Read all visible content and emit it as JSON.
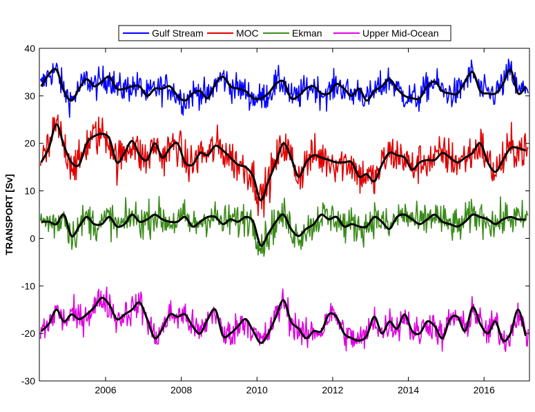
{
  "chart_data": {
    "type": "line",
    "title": "",
    "xlabel": "",
    "ylabel": "TRANSPORT [Sv]",
    "xlim": [
      2004.25,
      2017.2
    ],
    "ylim": [
      -30,
      40
    ],
    "x_ticks": [
      2006,
      2008,
      2010,
      2012,
      2014,
      2016
    ],
    "y_ticks": [
      -30,
      -20,
      -10,
      0,
      10,
      20,
      30,
      40
    ],
    "legend_position": "top-center",
    "grid": false,
    "smoothed_line_color": "#000000",
    "series": [
      {
        "name": "Gulf Stream",
        "color": "#0000ff",
        "x": [
          2004.3,
          2004.5,
          2004.7,
          2004.9,
          2005.1,
          2005.3,
          2005.5,
          2005.7,
          2005.9,
          2006.1,
          2006.3,
          2006.5,
          2006.7,
          2006.9,
          2007.1,
          2007.3,
          2007.5,
          2007.7,
          2007.9,
          2008.1,
          2008.3,
          2008.5,
          2008.7,
          2008.9,
          2009.1,
          2009.3,
          2009.5,
          2009.7,
          2009.9,
          2010.1,
          2010.3,
          2010.5,
          2010.7,
          2010.9,
          2011.1,
          2011.3,
          2011.5,
          2011.7,
          2011.9,
          2012.1,
          2012.3,
          2012.5,
          2012.7,
          2012.9,
          2013.1,
          2013.3,
          2013.5,
          2013.7,
          2013.9,
          2014.1,
          2014.3,
          2014.5,
          2014.7,
          2014.9,
          2015.1,
          2015.3,
          2015.5,
          2015.7,
          2015.9,
          2016.1,
          2016.3,
          2016.5,
          2016.7,
          2016.9,
          2017.1
        ],
        "values": [
          32.0,
          34.5,
          35.5,
          31.0,
          29.0,
          31.5,
          33.5,
          32.0,
          33.0,
          34.0,
          31.5,
          31.5,
          32.0,
          32.0,
          30.0,
          31.5,
          31.5,
          32.0,
          30.0,
          29.0,
          30.5,
          31.0,
          29.5,
          32.5,
          34.0,
          32.0,
          31.5,
          31.0,
          29.5,
          29.5,
          30.5,
          32.5,
          33.0,
          29.5,
          30.0,
          31.5,
          32.0,
          30.5,
          30.5,
          32.5,
          31.5,
          30.0,
          31.5,
          29.0,
          31.0,
          32.0,
          33.5,
          31.5,
          30.0,
          29.5,
          29.5,
          32.0,
          33.0,
          31.0,
          30.5,
          30.5,
          33.0,
          35.0,
          31.0,
          30.5,
          30.5,
          32.5,
          35.5,
          30.5,
          32.0
        ]
      },
      {
        "name": "MOC",
        "color": "#e00000",
        "x": [
          2004.3,
          2004.5,
          2004.7,
          2004.9,
          2005.1,
          2005.3,
          2005.5,
          2005.7,
          2005.9,
          2006.1,
          2006.3,
          2006.5,
          2006.7,
          2006.9,
          2007.1,
          2007.3,
          2007.5,
          2007.7,
          2007.9,
          2008.1,
          2008.3,
          2008.5,
          2008.7,
          2008.9,
          2009.1,
          2009.3,
          2009.5,
          2009.7,
          2009.9,
          2010.1,
          2010.3,
          2010.5,
          2010.7,
          2010.9,
          2011.1,
          2011.3,
          2011.5,
          2011.7,
          2011.9,
          2012.1,
          2012.3,
          2012.5,
          2012.7,
          2012.9,
          2013.1,
          2013.3,
          2013.5,
          2013.7,
          2013.9,
          2014.1,
          2014.3,
          2014.5,
          2014.7,
          2014.9,
          2015.1,
          2015.3,
          2015.5,
          2015.7,
          2015.9,
          2016.1,
          2016.3,
          2016.5,
          2016.7,
          2016.9,
          2017.1
        ],
        "values": [
          16.0,
          19.0,
          24.0,
          19.5,
          16.0,
          15.5,
          20.0,
          21.5,
          22.0,
          21.0,
          16.0,
          18.0,
          20.5,
          17.5,
          16.5,
          20.0,
          17.0,
          19.0,
          20.0,
          16.0,
          15.5,
          18.0,
          17.5,
          19.5,
          18.5,
          17.0,
          15.5,
          15.0,
          13.0,
          8.0,
          12.0,
          16.0,
          20.0,
          17.0,
          13.0,
          16.0,
          17.5,
          17.0,
          16.5,
          16.0,
          16.0,
          16.0,
          13.0,
          13.5,
          12.0,
          15.5,
          18.0,
          17.5,
          17.0,
          14.5,
          16.0,
          16.5,
          16.5,
          18.0,
          17.0,
          16.0,
          17.0,
          18.0,
          20.0,
          16.0,
          14.0,
          16.5,
          19.0,
          19.0,
          18.5
        ]
      },
      {
        "name": "Ekman",
        "color": "#3a8a1a",
        "x": [
          2004.3,
          2004.5,
          2004.7,
          2004.9,
          2005.1,
          2005.3,
          2005.5,
          2005.7,
          2005.9,
          2006.1,
          2006.3,
          2006.5,
          2006.7,
          2006.9,
          2007.1,
          2007.3,
          2007.5,
          2007.7,
          2007.9,
          2008.1,
          2008.3,
          2008.5,
          2008.7,
          2008.9,
          2009.1,
          2009.3,
          2009.5,
          2009.7,
          2009.9,
          2010.1,
          2010.3,
          2010.5,
          2010.7,
          2010.9,
          2011.1,
          2011.3,
          2011.5,
          2011.7,
          2011.9,
          2012.1,
          2012.3,
          2012.5,
          2012.7,
          2012.9,
          2013.1,
          2013.3,
          2013.5,
          2013.7,
          2013.9,
          2014.1,
          2014.3,
          2014.5,
          2014.7,
          2014.9,
          2015.1,
          2015.3,
          2015.5,
          2015.7,
          2015.9,
          2016.1,
          2016.3,
          2016.5,
          2016.7,
          2016.9,
          2017.1
        ],
        "values": [
          3.5,
          3.5,
          3.0,
          5.0,
          0.5,
          2.5,
          4.5,
          3.0,
          3.0,
          4.5,
          2.5,
          3.0,
          5.0,
          3.5,
          4.0,
          5.0,
          4.0,
          3.5,
          3.5,
          4.5,
          2.5,
          3.5,
          4.5,
          4.5,
          3.0,
          4.0,
          3.5,
          4.5,
          3.5,
          -1.5,
          1.0,
          3.5,
          5.0,
          2.0,
          0.5,
          2.0,
          3.0,
          5.0,
          4.0,
          4.5,
          2.5,
          3.0,
          2.5,
          2.5,
          4.5,
          3.5,
          2.0,
          4.5,
          5.0,
          4.0,
          3.0,
          4.0,
          5.0,
          3.5,
          3.0,
          2.5,
          3.5,
          5.0,
          4.5,
          4.0,
          3.0,
          4.0,
          4.5,
          4.0,
          4.0
        ]
      },
      {
        "name": "Upper Mid-Ocean",
        "color": "#e000e0",
        "x": [
          2004.3,
          2004.5,
          2004.7,
          2004.9,
          2005.1,
          2005.3,
          2005.5,
          2005.7,
          2005.9,
          2006.1,
          2006.3,
          2006.5,
          2006.7,
          2006.9,
          2007.1,
          2007.3,
          2007.5,
          2007.7,
          2007.9,
          2008.1,
          2008.3,
          2008.5,
          2008.7,
          2008.9,
          2009.1,
          2009.3,
          2009.5,
          2009.7,
          2009.9,
          2010.1,
          2010.3,
          2010.5,
          2010.7,
          2010.9,
          2011.1,
          2011.3,
          2011.5,
          2011.7,
          2011.9,
          2012.1,
          2012.3,
          2012.5,
          2012.7,
          2012.9,
          2013.1,
          2013.3,
          2013.5,
          2013.7,
          2013.9,
          2014.1,
          2014.3,
          2014.5,
          2014.7,
          2014.9,
          2015.1,
          2015.3,
          2015.5,
          2015.7,
          2015.9,
          2016.1,
          2016.3,
          2016.5,
          2016.7,
          2016.9,
          2017.1
        ],
        "values": [
          -19.5,
          -18.0,
          -15.0,
          -17.5,
          -16.0,
          -17.0,
          -16.0,
          -14.5,
          -12.5,
          -14.0,
          -17.0,
          -16.0,
          -15.0,
          -13.5,
          -17.0,
          -21.0,
          -19.0,
          -16.0,
          -16.5,
          -16.0,
          -18.5,
          -20.0,
          -17.0,
          -15.0,
          -20.5,
          -20.0,
          -18.5,
          -17.0,
          -19.5,
          -22.0,
          -20.0,
          -16.5,
          -13.0,
          -17.5,
          -19.0,
          -21.0,
          -19.5,
          -19.5,
          -16.0,
          -16.5,
          -20.0,
          -21.0,
          -21.5,
          -20.5,
          -16.5,
          -20.0,
          -17.5,
          -19.0,
          -16.0,
          -19.5,
          -20.0,
          -17.5,
          -18.5,
          -21.0,
          -17.0,
          -16.5,
          -19.5,
          -14.5,
          -18.0,
          -20.0,
          -17.5,
          -21.5,
          -20.0,
          -15.0,
          -20.5
        ]
      }
    ]
  }
}
